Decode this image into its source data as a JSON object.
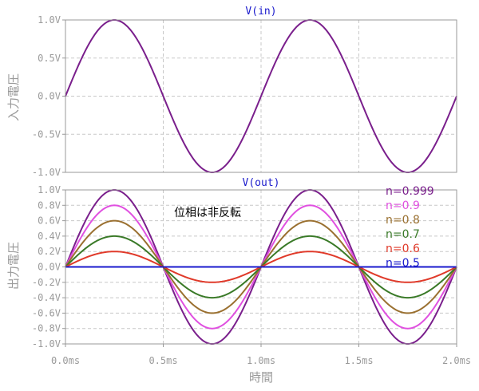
{
  "chart_data": [
    {
      "type": "line",
      "title": "V(in)",
      "ylabel": "入力電圧",
      "xlim": [
        0,
        2.0
      ],
      "ylim": [
        -1.0,
        1.0
      ],
      "x_ticks": [
        "0.0ms",
        "0.5ms",
        "1.0ms",
        "1.5ms",
        "2.0ms"
      ],
      "y_ticks": [
        "1.0V",
        "0.5V",
        "0.0V",
        "-0.5V",
        "-1.0V"
      ],
      "grid": true,
      "series": [
        {
          "function": "sine",
          "amplitude": 1.0,
          "frequency_khz": 1.0,
          "color": "#7a1f8c"
        }
      ]
    },
    {
      "type": "line",
      "title": "V(out)",
      "ylabel": "出力電圧",
      "xlabel": "時間",
      "xlim": [
        0,
        2.0
      ],
      "ylim": [
        -1.0,
        1.0
      ],
      "x_ticks": [
        "0.0ms",
        "0.5ms",
        "1.0ms",
        "1.5ms",
        "2.0ms"
      ],
      "y_ticks": [
        "1.0V",
        "0.8V",
        "0.6V",
        "0.4V",
        "0.2V",
        "0.0V",
        "-0.2V",
        "-0.4V",
        "-0.6V",
        "-0.8V",
        "-1.0V"
      ],
      "grid": true,
      "annotation": "位相は非反転",
      "legend_position": "top-right",
      "series": [
        {
          "name": "n=0.999",
          "amplitude": 1.0,
          "color": "#7a1f8c"
        },
        {
          "name": "n=0.9",
          "amplitude": 0.8,
          "color": "#e050e0"
        },
        {
          "name": "n=0.8",
          "amplitude": 0.6,
          "color": "#9a7030"
        },
        {
          "name": "n=0.7",
          "amplitude": 0.4,
          "color": "#3a7a28"
        },
        {
          "name": "n=0.6",
          "amplitude": 0.2,
          "color": "#e03a2a"
        },
        {
          "name": "n=0.5",
          "amplitude": 0.0,
          "color": "#1a1acc"
        }
      ]
    }
  ]
}
